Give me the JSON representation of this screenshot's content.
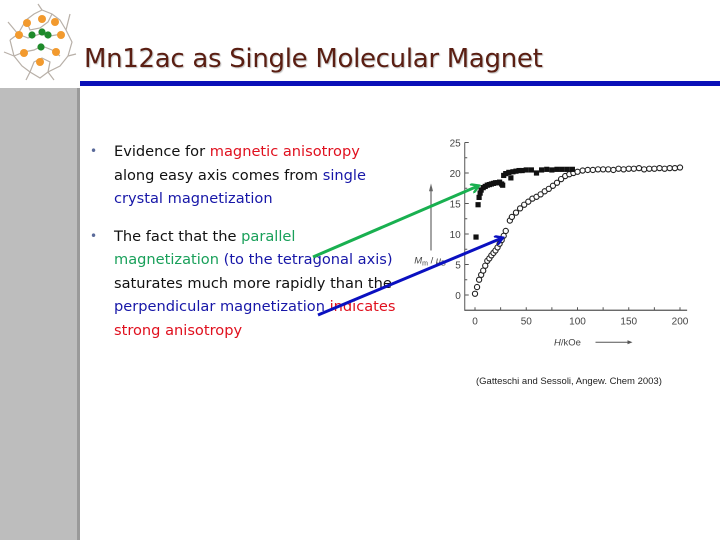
{
  "slide": {
    "title": "Mn12ac as Single Molecular Magnet",
    "colors": {
      "title": "#5a1e12",
      "title_rule": "#0a10b8",
      "sidebar": "#bdbdbd",
      "red": "#e0101e",
      "blue": "#1717a8",
      "green": "#19a05a"
    },
    "bullets": [
      {
        "segments": [
          {
            "text": "Evidence for ",
            "color": "black"
          },
          {
            "text": "magnetic anisotropy",
            "color": "red"
          },
          {
            "text": " along easy axis comes from ",
            "color": "black"
          },
          {
            "text": "single crystal magnetization",
            "color": "blue"
          }
        ]
      },
      {
        "segments": [
          {
            "text": "The fact that the ",
            "color": "black"
          },
          {
            "text": "parallel magnetization",
            "color": "green"
          },
          {
            "text": " (to the tetragonal axis)",
            "color": "blue"
          },
          {
            "text": "  saturates much more rapidly than the ",
            "color": "black"
          },
          {
            "text": "perpendicular magnetization",
            "color": "blue"
          },
          {
            "text": " indicates strong anisotropy",
            "color": "red"
          }
        ]
      }
    ],
    "citation": "(Gatteschi and Sessoli, Angew. Chem 2003)",
    "bullet_glyph": "•",
    "logo_icon": "mn12-molecule-icon",
    "arrows": [
      {
        "name": "parallel-arrow",
        "color": "#19b050",
        "from": [
          313,
          257
        ],
        "to": [
          478,
          186
        ]
      },
      {
        "name": "perpendicular-arrow",
        "color": "#0a10c0",
        "from": [
          318,
          315
        ],
        "to": [
          502,
          238
        ]
      }
    ]
  },
  "chart_data": {
    "type": "scatter",
    "title": "",
    "xlabel": "H/kOe",
    "ylabel": "Mm / μB",
    "xlim": [
      -5,
      205
    ],
    "ylim": [
      -2.5,
      25
    ],
    "xticks": [
      0,
      50,
      100,
      150,
      200
    ],
    "yticks": [
      0,
      5,
      10,
      15,
      20,
      25
    ],
    "grid": false,
    "legend": null,
    "series": [
      {
        "name": "parallel (filled squares)",
        "marker": "filled-square",
        "x": [
          1,
          3,
          4,
          5,
          6,
          8,
          10,
          12,
          14,
          16,
          18,
          20,
          22,
          24,
          26,
          27,
          28,
          30,
          33,
          35,
          37,
          40,
          43,
          46,
          50,
          55,
          60,
          65,
          70,
          75,
          80,
          85,
          90,
          95
        ],
        "y": [
          9.5,
          14.8,
          16.0,
          16.7,
          17.2,
          17.6,
          17.8,
          18.0,
          18.1,
          18.2,
          18.3,
          18.4,
          18.4,
          18.5,
          18.2,
          18.0,
          19.6,
          19.9,
          20.1,
          19.2,
          20.2,
          20.3,
          20.4,
          20.4,
          20.5,
          20.5,
          20.0,
          20.5,
          20.6,
          20.5,
          20.6,
          20.6,
          20.6,
          20.6
        ]
      },
      {
        "name": "perpendicular (open circles)",
        "marker": "open-circle",
        "x": [
          0,
          2,
          4,
          6,
          8,
          10,
          12,
          14,
          16,
          18,
          20,
          22,
          24,
          26,
          28,
          30,
          34,
          36,
          40,
          44,
          48,
          52,
          56,
          60,
          64,
          68,
          72,
          76,
          80,
          84,
          88,
          92,
          96,
          100,
          105,
          110,
          115,
          120,
          125,
          130,
          135,
          140,
          145,
          150,
          155,
          160,
          165,
          170,
          175,
          180,
          185,
          190,
          195,
          200
        ],
        "y": [
          0.2,
          1.3,
          2.5,
          3.3,
          4.0,
          4.8,
          5.6,
          6.0,
          6.5,
          6.9,
          7.3,
          7.8,
          8.4,
          9.0,
          9.7,
          10.5,
          12.2,
          12.8,
          13.5,
          14.2,
          14.8,
          15.3,
          15.8,
          16.1,
          16.5,
          17.0,
          17.4,
          17.9,
          18.4,
          19.0,
          19.5,
          19.8,
          20.0,
          20.2,
          20.4,
          20.5,
          20.5,
          20.6,
          20.6,
          20.6,
          20.5,
          20.7,
          20.6,
          20.7,
          20.7,
          20.8,
          20.6,
          20.7,
          20.7,
          20.8,
          20.7,
          20.8,
          20.8,
          20.9
        ]
      }
    ]
  }
}
